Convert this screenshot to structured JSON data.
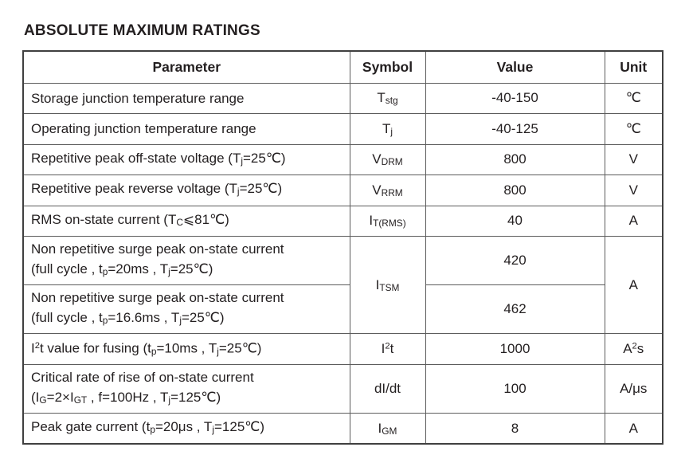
{
  "page": {
    "title": "ABSOLUTE MAXIMUM RATINGS"
  },
  "table": {
    "headers": [
      "Parameter",
      "Symbol",
      "Value",
      "Unit"
    ],
    "rows": [
      {
        "parameter": "Storage junction temperature range",
        "symbol": "T~stg~",
        "value": "-40-150",
        "unit": "℃"
      },
      {
        "parameter": "Operating junction temperature range",
        "symbol": "T~j~",
        "value": "-40-125",
        "unit": "℃"
      },
      {
        "parameter": "Repetitive peak off-state voltage (T~j~=25℃)",
        "symbol": "V~DRM~",
        "value": "800",
        "unit": "V"
      },
      {
        "parameter": "Repetitive peak reverse voltage (T~j~=25℃)",
        "symbol": "V~RRM~",
        "value": "800",
        "unit": "V"
      },
      {
        "parameter": "RMS on-state current (T~C~⩽81℃)",
        "symbol": "I~T(RMS)~",
        "value": "40",
        "unit": "A"
      },
      {
        "parameter": "Non repetitive surge peak on-state current\n(full cycle , t~p~=20ms , T~j~=25℃)",
        "symbol": "I~TSM~",
        "value": "420",
        "unit": "A"
      },
      {
        "parameter": "Non repetitive surge peak on-state current\n(full cycle , t~p~=16.6ms , T~j~=25℃)",
        "value": "462"
      },
      {
        "parameter": "I^2^t value for fusing (t~p~=10ms , T~j~=25℃)",
        "symbol": "I^2^t",
        "value": "1000",
        "unit": "A^2^s"
      },
      {
        "parameter": "Critical rate of rise of on-state current\n(I~G~=2×I~GT~ , f=100Hz , T~j~=125℃)",
        "symbol": "dI/dt",
        "value": "100",
        "unit": "A/μs"
      },
      {
        "parameter": "Peak gate current (t~p~=20μs , T~j~=125℃)",
        "symbol": "I~GM~",
        "value": "8",
        "unit": "A"
      }
    ]
  }
}
